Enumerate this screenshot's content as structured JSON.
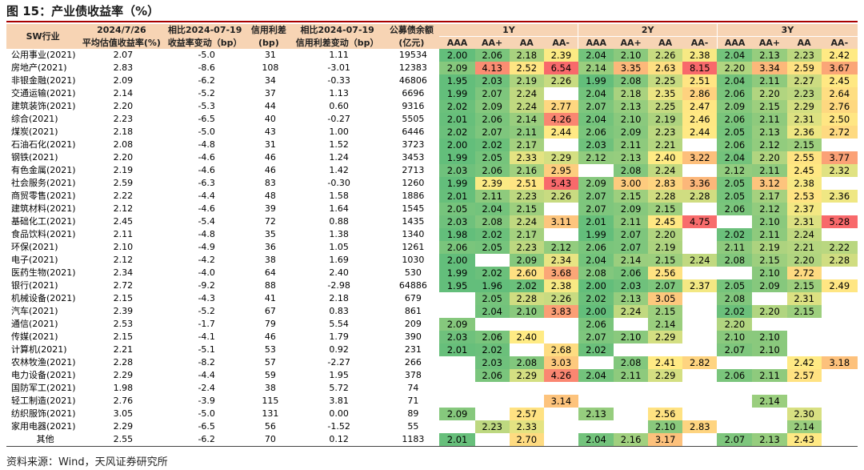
{
  "title": "图 15：产业债收益率（%）",
  "source": "资料来源：Wind，天风证券研究所",
  "headers": {
    "industry": "SW行业",
    "date_top": "2024/7/26",
    "date_bottom": "平均估值收益率(%)",
    "change_top": "相比2024-07-19",
    "change_bottom": "收益率变动（bp）",
    "spread_top": "信用利差",
    "spread_bottom": "(bp)",
    "spread_change_top": "相比2024-07-19",
    "spread_change_bottom": "信用利差变动（bp）",
    "balance_top": "公募债余额",
    "balance_bottom": "(亿元)",
    "tenors": [
      "1Y",
      "2Y",
      "3Y"
    ],
    "ratings": [
      "AAA",
      "AA+",
      "AA",
      "AA-",
      "AAA",
      "AA+",
      "AA",
      "AA-",
      "AAA",
      "AA+",
      "AA",
      "AA-"
    ]
  },
  "colors": {
    "header_bg": "#f7d4b4",
    "title_rule": "#a80000",
    "scale_low": "#63be7b",
    "scale_mid": "#ffeb84",
    "scale_high": "#f8696b"
  },
  "rows": [
    {
      "name": "公用事业(2021)",
      "avg": "2.07",
      "chg": "-5.0",
      "spread": "31",
      "spread_chg": "1.11",
      "balance": "19534",
      "grid": [
        "2.00",
        "2.06",
        "2.18",
        "2.39",
        "2.04",
        "2.10",
        "2.26",
        "2.38",
        "2.04",
        "2.13",
        "2.23",
        "2.42"
      ]
    },
    {
      "name": "房地产(2021)",
      "avg": "2.83",
      "chg": "-8.6",
      "spread": "108",
      "spread_chg": "-3.01",
      "balance": "12383",
      "grid": [
        "2.09",
        "4.13",
        "2.52",
        "6.54",
        "2.14",
        "3.35",
        "2.63",
        "8.15",
        "2.20",
        "3.34",
        "2.59",
        "3.67"
      ]
    },
    {
      "name": "非银金融(2021)",
      "avg": "2.09",
      "chg": "-6.2",
      "spread": "34",
      "spread_chg": "-0.33",
      "balance": "46806",
      "grid": [
        "1.95",
        "2.03",
        "2.19",
        "2.26",
        "1.99",
        "2.08",
        "2.25",
        "2.51",
        "2.04",
        "2.11",
        "2.27",
        "2.45"
      ]
    },
    {
      "name": "交通运输(2021)",
      "avg": "2.14",
      "chg": "-5.2",
      "spread": "37",
      "spread_chg": "1.13",
      "balance": "6696",
      "grid": [
        "1.99",
        "2.07",
        "2.24",
        "",
        "2.04",
        "2.18",
        "2.35",
        "2.86",
        "2.06",
        "2.20",
        "2.23",
        "2.64"
      ]
    },
    {
      "name": "建筑装饰(2021)",
      "avg": "2.20",
      "chg": "-5.3",
      "spread": "44",
      "spread_chg": "0.60",
      "balance": "9316",
      "grid": [
        "2.02",
        "2.09",
        "2.24",
        "2.77",
        "2.07",
        "2.13",
        "2.25",
        "2.47",
        "2.09",
        "2.15",
        "2.29",
        "2.76"
      ]
    },
    {
      "name": "综合(2021)",
      "avg": "2.23",
      "chg": "-6.5",
      "spread": "40",
      "spread_chg": "-0.27",
      "balance": "5505",
      "grid": [
        "2.01",
        "2.06",
        "2.14",
        "4.26",
        "2.04",
        "2.10",
        "2.19",
        "2.46",
        "2.06",
        "2.11",
        "2.31",
        "2.50"
      ]
    },
    {
      "name": "煤炭(2021)",
      "avg": "2.18",
      "chg": "-5.0",
      "spread": "43",
      "spread_chg": "1.00",
      "balance": "6446",
      "grid": [
        "2.02",
        "2.07",
        "2.11",
        "2.44",
        "2.06",
        "2.09",
        "2.23",
        "2.44",
        "2.05",
        "2.13",
        "2.36",
        "2.72"
      ]
    },
    {
      "name": "石油石化(2021)",
      "avg": "2.08",
      "chg": "-4.8",
      "spread": "31",
      "spread_chg": "1.52",
      "balance": "3723",
      "grid": [
        "2.00",
        "2.02",
        "2.17",
        "",
        "2.03",
        "2.11",
        "2.21",
        "",
        "2.06",
        "2.12",
        "2.15",
        ""
      ]
    },
    {
      "name": "钢铁(2021)",
      "avg": "2.20",
      "chg": "-4.6",
      "spread": "46",
      "spread_chg": "1.24",
      "balance": "3453",
      "grid": [
        "1.99",
        "2.05",
        "2.33",
        "2.29",
        "2.12",
        "2.13",
        "2.40",
        "3.22",
        "2.04",
        "2.20",
        "2.55",
        "3.77"
      ]
    },
    {
      "name": "有色金属(2021)",
      "avg": "2.19",
      "chg": "-4.6",
      "spread": "46",
      "spread_chg": "1.42",
      "balance": "2713",
      "grid": [
        "2.03",
        "2.06",
        "2.16",
        "2.95",
        "",
        "2.08",
        "2.24",
        "",
        "2.12",
        "2.11",
        "2.45",
        "2.32"
      ]
    },
    {
      "name": "社会服务(2021)",
      "avg": "2.59",
      "chg": "-6.3",
      "spread": "83",
      "spread_chg": "-0.30",
      "balance": "1260",
      "grid": [
        "1.99",
        "2.39",
        "2.51",
        "5.43",
        "2.09",
        "3.00",
        "2.83",
        "3.36",
        "2.05",
        "3.12",
        "2.38",
        ""
      ]
    },
    {
      "name": "商贸零售(2021)",
      "avg": "2.22",
      "chg": "-4.4",
      "spread": "48",
      "spread_chg": "1.58",
      "balance": "1886",
      "grid": [
        "2.01",
        "2.11",
        "2.23",
        "2.26",
        "2.07",
        "2.15",
        "2.28",
        "2.28",
        "2.05",
        "2.17",
        "2.53",
        "2.36"
      ]
    },
    {
      "name": "建筑材料(2021)",
      "avg": "2.12",
      "chg": "-4.6",
      "spread": "39",
      "spread_chg": "1.64",
      "balance": "1545",
      "grid": [
        "2.05",
        "2.04",
        "2.15",
        "",
        "2.07",
        "2.09",
        "2.15",
        "",
        "2.06",
        "2.12",
        "2.37",
        ""
      ]
    },
    {
      "name": "基础化工(2021)",
      "avg": "2.45",
      "chg": "-5.4",
      "spread": "72",
      "spread_chg": "0.88",
      "balance": "1435",
      "grid": [
        "2.03",
        "2.08",
        "2.24",
        "3.11",
        "2.01",
        "2.11",
        "2.45",
        "4.75",
        "",
        "2.10",
        "2.31",
        "5.28"
      ]
    },
    {
      "name": "食品饮料(2021)",
      "avg": "2.11",
      "chg": "-4.8",
      "spread": "35",
      "spread_chg": "1.38",
      "balance": "1340",
      "grid": [
        "1.98",
        "2.02",
        "2.17",
        "",
        "1.99",
        "2.07",
        "2.20",
        "",
        "2.02",
        "2.11",
        "2.24",
        ""
      ]
    },
    {
      "name": "环保(2021)",
      "avg": "2.10",
      "chg": "-4.9",
      "spread": "36",
      "spread_chg": "1.05",
      "balance": "1261",
      "grid": [
        "2.06",
        "2.05",
        "2.23",
        "2.12",
        "2.06",
        "2.07",
        "2.19",
        "",
        "2.11",
        "2.19",
        "2.21",
        "2.22"
      ]
    },
    {
      "name": "电子(2021)",
      "avg": "2.12",
      "chg": "-4.2",
      "spread": "38",
      "spread_chg": "1.69",
      "balance": "1030",
      "grid": [
        "2.00",
        "",
        "2.09",
        "2.34",
        "2.04",
        "2.14",
        "2.15",
        "2.24",
        "2.08",
        "2.15",
        "2.20",
        "2.28"
      ]
    },
    {
      "name": "医药生物(2021)",
      "avg": "2.34",
      "chg": "-4.0",
      "spread": "64",
      "spread_chg": "2.40",
      "balance": "530",
      "grid": [
        "1.99",
        "2.02",
        "2.60",
        "3.68",
        "2.08",
        "2.06",
        "2.56",
        "",
        "",
        "2.10",
        "2.72",
        ""
      ]
    },
    {
      "name": "银行(2021)",
      "avg": "2.72",
      "chg": "-9.2",
      "spread": "88",
      "spread_chg": "-2.98",
      "balance": "64886",
      "grid": [
        "1.95",
        "1.96",
        "2.02",
        "2.38",
        "2.00",
        "2.03",
        "2.07",
        "2.37",
        "2.05",
        "2.09",
        "2.15",
        "2.49"
      ]
    },
    {
      "name": "机械设备(2021)",
      "avg": "2.15",
      "chg": "-4.3",
      "spread": "41",
      "spread_chg": "2.18",
      "balance": "679",
      "grid": [
        "",
        "2.05",
        "2.28",
        "2.26",
        "2.02",
        "2.13",
        "3.05",
        "",
        "2.08",
        "",
        "2.31",
        ""
      ]
    },
    {
      "name": "汽车(2021)",
      "avg": "2.39",
      "chg": "-5.2",
      "spread": "67",
      "spread_chg": "0.83",
      "balance": "861",
      "grid": [
        "",
        "2.04",
        "2.10",
        "3.83",
        "2.00",
        "2.24",
        "2.15",
        "",
        "2.02",
        "2.20",
        "2.15",
        ""
      ]
    },
    {
      "name": "通信(2021)",
      "avg": "2.53",
      "chg": "-1.7",
      "spread": "79",
      "spread_chg": "5.54",
      "balance": "209",
      "grid": [
        "2.09",
        "",
        "",
        "",
        "2.06",
        "",
        "2.14",
        "",
        "2.20",
        "",
        "",
        ""
      ]
    },
    {
      "name": "传媒(2021)",
      "avg": "2.15",
      "chg": "-4.1",
      "spread": "46",
      "spread_chg": "1.79",
      "balance": "390",
      "grid": [
        "2.03",
        "2.06",
        "2.40",
        "",
        "2.07",
        "2.10",
        "2.29",
        "",
        "2.10",
        "2.10",
        "",
        ""
      ]
    },
    {
      "name": "计算机(2021)",
      "avg": "2.21",
      "chg": "-5.1",
      "spread": "53",
      "spread_chg": "0.92",
      "balance": "231",
      "grid": [
        "2.01",
        "2.02",
        "",
        "2.68",
        "2.02",
        "",
        "",
        "",
        "2.07",
        "2.10",
        "",
        ""
      ]
    },
    {
      "name": "农林牧渔(2021)",
      "avg": "2.28",
      "chg": "-8.2",
      "spread": "57",
      "spread_chg": "-2.27",
      "balance": "266",
      "grid": [
        "",
        "2.03",
        "2.08",
        "3.03",
        "",
        "2.08",
        "2.41",
        "2.82",
        "",
        "",
        "2.42",
        "3.18"
      ]
    },
    {
      "name": "电力设备(2021)",
      "avg": "2.29",
      "chg": "-4.4",
      "spread": "59",
      "spread_chg": "1.95",
      "balance": "378",
      "grid": [
        "",
        "2.06",
        "2.29",
        "4.26",
        "2.04",
        "2.11",
        "2.29",
        "",
        "2.06",
        "2.11",
        "2.57",
        ""
      ]
    },
    {
      "name": "国防军工(2021)",
      "avg": "1.98",
      "chg": "-2.4",
      "spread": "38",
      "spread_chg": "5.72",
      "balance": "74",
      "grid": [
        "",
        "",
        "",
        "",
        "",
        "",
        "",
        "",
        "",
        "",
        "",
        ""
      ]
    },
    {
      "name": "轻工制造(2021)",
      "avg": "2.76",
      "chg": "-3.9",
      "spread": "115",
      "spread_chg": "3.81",
      "balance": "71",
      "grid": [
        "",
        "",
        "",
        "3.14",
        "",
        "",
        "",
        "",
        "",
        "2.14",
        "",
        ""
      ]
    },
    {
      "name": "纺织服饰(2021)",
      "avg": "3.05",
      "chg": "-5.0",
      "spread": "131",
      "spread_chg": "0.00",
      "balance": "89",
      "grid": [
        "2.09",
        "",
        "2.57",
        "",
        "2.13",
        "",
        "2.56",
        "",
        "",
        "",
        "2.30",
        ""
      ]
    },
    {
      "name": "家用电器(2021)",
      "avg": "2.29",
      "chg": "-6.5",
      "spread": "56",
      "spread_chg": "-1.52",
      "balance": "55",
      "grid": [
        "",
        "2.23",
        "2.33",
        "",
        "",
        "",
        "2.10",
        "2.83",
        "",
        "",
        "2.14",
        ""
      ]
    },
    {
      "name": "其他",
      "avg": "2.55",
      "chg": "-6.2",
      "spread": "70",
      "spread_chg": "0.12",
      "balance": "1183",
      "grid": [
        "2.01",
        "",
        "2.70",
        "",
        "2.04",
        "2.16",
        "3.17",
        "",
        "2.07",
        "2.13",
        "2.43",
        ""
      ]
    }
  ]
}
